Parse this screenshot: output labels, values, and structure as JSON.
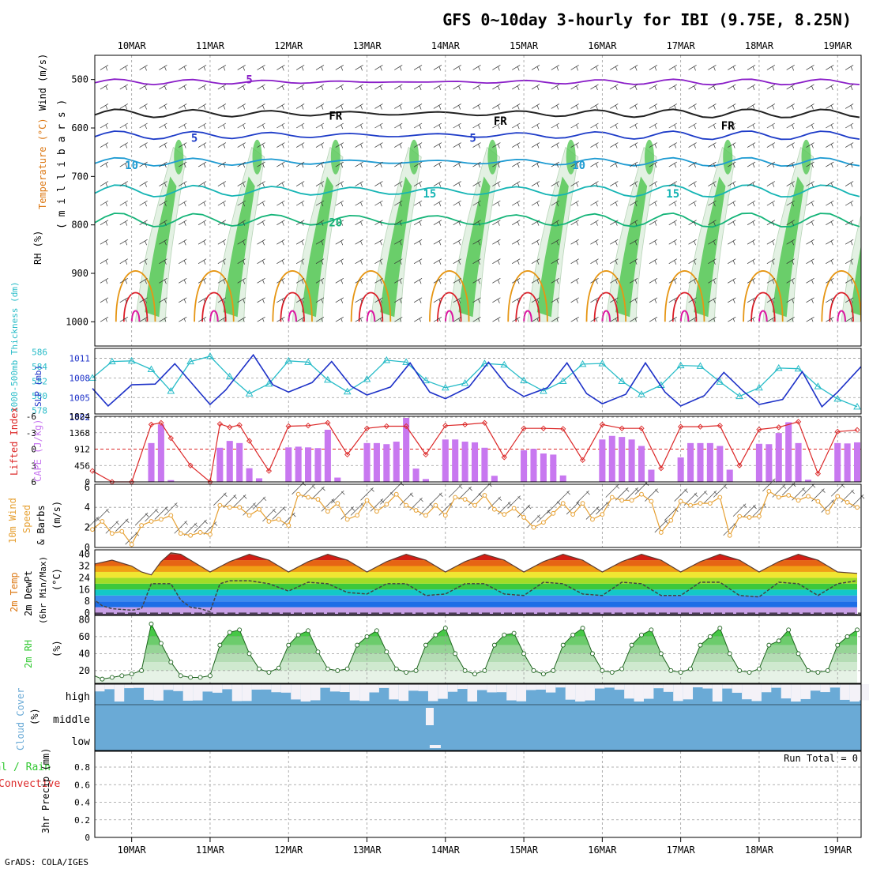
{
  "title": "GFS 0~10day 3-hourly for IBI (9.75E, 8.25N)",
  "footer": "GrADS: COLA/IGES",
  "colors": {
    "rh_green": "#55c855",
    "rh_light": "#e3f1e3",
    "wind_purple": "#8a1ec8",
    "fr_black": "#000000",
    "blue_5": "#1e3cc8",
    "cyan_10": "#1e9bd2",
    "teal_15": "#14b4b4",
    "green_20": "#14b478",
    "orange_25": "#e69614",
    "red_30": "#dc1e28",
    "magenta_35": "#dc14a0",
    "slp_cyan": "#28bcc8",
    "thickness_blue": "#1e32c8",
    "li_red": "#dc2828",
    "cape_purple": "#c878f0",
    "wind_orange": "#e6a032",
    "rh2m_green": "#32c832",
    "cloud_blue": "#6aaad6"
  },
  "x_axis": {
    "dates": [
      "10MAR",
      "11MAR",
      "12MAR",
      "13MAR",
      "14MAR",
      "15MAR",
      "16MAR",
      "17MAR",
      "18MAR",
      "19MAR"
    ],
    "range_days": [
      -0.47,
      9.3
    ]
  },
  "panels": {
    "upper": {
      "ylabel": "(millibars)",
      "ylabel_spaced": "( m i l l i b a r s )",
      "label_wind": "Wind (m/s)",
      "label_temp": "Temperature (°C)",
      "label_rh": "RH (%)",
      "yticks": [
        "500",
        "600",
        "700",
        "800",
        "900",
        "1000"
      ],
      "contour_labels": [
        "5",
        "FR",
        "5",
        "5",
        "FR",
        "FR",
        "10",
        "10",
        "15",
        "15",
        "20"
      ]
    },
    "slp": {
      "label_left": "1000-500mb Thickness (dm)",
      "label_right": "SLP (mb)",
      "left_ticks": [
        "586",
        "584",
        "582",
        "580",
        "578"
      ],
      "right_ticks": [
        "1011",
        "1008",
        "1005",
        "1002"
      ]
    },
    "cape": {
      "label_left": "Lifted Index",
      "label_right": "CAPE (J/kg)",
      "left_ticks": [
        "-6",
        "-3",
        "0",
        "3",
        "6"
      ],
      "right_ticks": [
        "1824",
        "1368",
        "912",
        "456",
        "0"
      ]
    },
    "wind10": {
      "label1": "10m Wind",
      "label2": "Speed",
      "label3": "& Barbs",
      "label4": "(m/s)",
      "ticks": [
        "0",
        "2",
        "4",
        "6"
      ]
    },
    "temp2m": {
      "label1": "2m Temp",
      "label2": "2m DewPt",
      "label3": "(6hr Min/Max)",
      "label4": "(°C)",
      "ticks": [
        "0",
        "8",
        "16",
        "24",
        "32",
        "40"
      ]
    },
    "rh2m": {
      "label1": "2m RH",
      "label2": "(%)",
      "ticks": [
        "20",
        "40",
        "60",
        "80"
      ]
    },
    "cloud": {
      "label1": "Cloud Cover",
      "label2": "(%)",
      "levels": [
        "high",
        "middle",
        "low"
      ]
    },
    "precip": {
      "label1": "Total / Rain",
      "label2": "Convective",
      "label3": "3hr Precip (mm)",
      "ticks": [
        "0",
        "0.2",
        "0.4",
        "0.6",
        "0.8"
      ],
      "run_total": "Run Total = 0"
    }
  },
  "chart_data": [
    {
      "type": "line",
      "title": "1000-500mb Thickness (dm) / SLP (mb)",
      "x_unit": "days from 10MAR 00Z",
      "series": [
        {
          "name": "SLP (mb)",
          "x": [
            -0.5,
            -0.25,
            0,
            0.25,
            0.5,
            0.75,
            1,
            1.25,
            1.5,
            1.75,
            2,
            2.25,
            2.5,
            2.75,
            3,
            3.25,
            3.5,
            3.75,
            4,
            4.25,
            4.5,
            4.75,
            5,
            5.25,
            5.5,
            5.75,
            6,
            6.25,
            6.5,
            6.75,
            7,
            7.25,
            7.5,
            7.75,
            8,
            8.25,
            8.5,
            8.75,
            9,
            9.25
          ],
          "y": [
            1008,
            1010.5,
            1010.6,
            1009.3,
            1006,
            1010.5,
            1011.3,
            1008.2,
            1005.6,
            1007.1,
            1010.6,
            1010.4,
            1007.7,
            1005.9,
            1007.8,
            1010.7,
            1010.4,
            1007.6,
            1006.5,
            1007.2,
            1010.2,
            1010,
            1007.6,
            1006,
            1007.5,
            1010.1,
            1010.2,
            1007.5,
            1005.5,
            1006.9,
            1009.9,
            1009.8,
            1007.4,
            1005.2,
            1006.5,
            1009.5,
            1009.4,
            1006.7,
            1004.8,
            1003.6
          ]
        },
        {
          "name": "1000-500mb Thickness (dm)",
          "x": [
            -0.5,
            -0.3,
            0,
            0.3,
            0.55,
            0.8,
            1,
            1.2,
            1.55,
            1.8,
            2,
            2.3,
            2.55,
            2.8,
            3,
            3.3,
            3.55,
            3.8,
            4,
            4.3,
            4.55,
            4.8,
            5,
            5.3,
            5.55,
            5.8,
            6,
            6.3,
            6.55,
            6.8,
            7,
            7.3,
            7.55,
            7.8,
            8,
            8.3,
            8.55,
            8.8,
            9,
            9.3
          ],
          "y": [
            581,
            578.6,
            581.5,
            581.6,
            584.4,
            581.3,
            578.8,
            580.8,
            585.6,
            581.5,
            580.5,
            581.8,
            584.7,
            581.3,
            580.1,
            581.2,
            584.5,
            580.5,
            579.6,
            581.2,
            584.6,
            581.2,
            579.9,
            581.1,
            584.5,
            580.3,
            578.9,
            580.2,
            584.5,
            580.5,
            578.6,
            580,
            583.2,
            580.6,
            578.8,
            579.5,
            583.3,
            578.5,
            580.5,
            584
          ]
        }
      ]
    },
    {
      "type": "bar",
      "title": "Lifted Index / CAPE (J/kg)",
      "x_unit": "days from 10MAR 00Z",
      "series": [
        {
          "name": "CAPE (J/kg)",
          "x": [
            0.25,
            0.375,
            0.5,
            1.125,
            1.25,
            1.375,
            1.5,
            1.625,
            2,
            2.125,
            2.25,
            2.375,
            2.5,
            2.625,
            3,
            3.125,
            3.25,
            3.375,
            3.5,
            3.625,
            3.75,
            4,
            4.125,
            4.25,
            4.375,
            4.5,
            4.625,
            5,
            5.125,
            5.25,
            5.375,
            5.5,
            6,
            6.125,
            6.25,
            6.375,
            6.5,
            6.625,
            7,
            7.125,
            7.25,
            7.375,
            7.5,
            7.625,
            8,
            8.125,
            8.25,
            8.375,
            8.5,
            8.625,
            9,
            9.125,
            9.25
          ],
          "y": [
            1080,
            1600,
            50,
            950,
            1140,
            1080,
            380,
            100,
            960,
            980,
            960,
            940,
            1450,
            120,
            1080,
            1080,
            1050,
            1120,
            1780,
            370,
            80,
            1180,
            1180,
            1120,
            1100,
            950,
            170,
            880,
            920,
            790,
            760,
            180,
            1180,
            1280,
            1250,
            1180,
            1000,
            340,
            680,
            1080,
            1080,
            1080,
            1000,
            340,
            1060,
            1050,
            1360,
            1660,
            1080,
            60,
            1080,
            1070,
            1100
          ]
        },
        {
          "name": "Lifted Index",
          "x": [
            -0.5,
            -0.25,
            0,
            0.25,
            0.375,
            0.5,
            0.75,
            1,
            1.125,
            1.25,
            1.375,
            1.5,
            1.75,
            2,
            2.25,
            2.5,
            2.75,
            3,
            3.25,
            3.5,
            3.75,
            4,
            4.25,
            4.5,
            4.75,
            5,
            5.25,
            5.5,
            5.75,
            6,
            6.25,
            6.5,
            6.75,
            7,
            7.25,
            7.5,
            7.75,
            8,
            8.25,
            8.5,
            8.75,
            9,
            9.25
          ],
          "y": [
            4,
            6,
            6,
            -4.5,
            -4.8,
            -2,
            3,
            6,
            -4.6,
            -4,
            -4.4,
            -1.5,
            4,
            -4.2,
            -4.3,
            -4.8,
            1,
            -3.8,
            -4.2,
            -4.2,
            1,
            -4.3,
            -4.5,
            -4.8,
            1.5,
            -3.8,
            -3.8,
            -3.7,
            2,
            -4.5,
            -3.8,
            -3.8,
            3.5,
            -4.1,
            -4.1,
            -4.3,
            3,
            -3.6,
            -4,
            -5,
            4.5,
            -3.2,
            -3.5
          ]
        }
      ]
    },
    {
      "type": "line",
      "title": "10m Wind Speed (m/s)",
      "x_unit": "days from 10MAR 00Z",
      "series": [
        {
          "name": "10m Wind Speed",
          "x": [
            -0.5,
            -0.375,
            -0.25,
            -0.125,
            0,
            0.125,
            0.25,
            0.375,
            0.5,
            0.625,
            0.75,
            0.875,
            1,
            1.125,
            1.25,
            1.375,
            1.5,
            1.625,
            1.75,
            1.875,
            2,
            2.125,
            2.25,
            2.375,
            2.5,
            2.625,
            2.75,
            2.875,
            3,
            3.125,
            3.25,
            3.375,
            3.5,
            3.625,
            3.75,
            3.875,
            4,
            4.125,
            4.25,
            4.375,
            4.5,
            4.625,
            4.75,
            4.875,
            5,
            5.125,
            5.25,
            5.375,
            5.5,
            5.625,
            5.75,
            5.875,
            6,
            6.125,
            6.25,
            6.375,
            6.5,
            6.625,
            6.75,
            6.875,
            7,
            7.125,
            7.25,
            7.375,
            7.5,
            7.625,
            7.75,
            7.875,
            8,
            8.125,
            8.25,
            8.375,
            8.5,
            8.625,
            8.75,
            8.875,
            9,
            9.125,
            9.25
          ],
          "y": [
            1.8,
            2.6,
            1.4,
            1.6,
            0.3,
            2.2,
            2.6,
            2.8,
            3.2,
            1.4,
            1.2,
            1.5,
            1.3,
            4.2,
            4,
            4,
            3.2,
            3.8,
            2.6,
            2.8,
            2.2,
            5.3,
            5,
            4.8,
            3.6,
            4.4,
            2.8,
            3.2,
            4.7,
            3.6,
            4.3,
            5.3,
            4.2,
            3.7,
            3.2,
            4.2,
            3.2,
            5,
            4.8,
            4.2,
            5.2,
            3.8,
            3.3,
            3.9,
            3,
            2,
            2.5,
            3.4,
            4.4,
            3.3,
            4.4,
            2.8,
            3.3,
            5,
            4.7,
            4.7,
            5.3,
            4.6,
            1.5,
            2.7,
            4.6,
            4.2,
            4.4,
            4.4,
            5,
            1.2,
            3.1,
            3,
            3.1,
            5.6,
            5,
            5.2,
            4.7,
            5.1,
            4.6,
            3.5,
            5.1,
            4.5,
            4
          ]
        }
      ]
    },
    {
      "type": "area",
      "title": "2m Temp / 2m DewPt (6hr Min/Max) (°C)",
      "x_unit": "days from 10MAR 00Z",
      "series": [
        {
          "name": "2m Temp",
          "x": [
            -0.5,
            -0.25,
            0,
            0.125,
            0.25,
            0.375,
            0.5,
            0.625,
            0.75,
            1,
            1.25,
            1.5,
            1.75,
            2,
            2.25,
            2.5,
            2.75,
            3,
            3.25,
            3.5,
            3.75,
            4,
            4.25,
            4.5,
            4.75,
            5,
            5.25,
            5.5,
            5.75,
            6,
            6.25,
            6.5,
            6.75,
            7,
            7.25,
            7.5,
            7.75,
            8,
            8.25,
            8.5,
            8.75,
            9,
            9.25
          ],
          "y": [
            33,
            36,
            32,
            28,
            26,
            35,
            41,
            40,
            36,
            28,
            35,
            40,
            36,
            28,
            35,
            40,
            36,
            28,
            35,
            40,
            36,
            28,
            35,
            40,
            36,
            28,
            35,
            40,
            36,
            28,
            35,
            40,
            36,
            28,
            35,
            40,
            36,
            28,
            35,
            40,
            36,
            28,
            27
          ]
        },
        {
          "name": "2m DewPt",
          "x": [
            -0.5,
            -0.375,
            -0.25,
            0,
            0.125,
            0.25,
            0.5,
            0.625,
            0.75,
            0.875,
            1,
            1.125,
            1.25,
            1.5,
            1.75,
            2,
            2.25,
            2.5,
            2.75,
            3,
            3.25,
            3.5,
            3.75,
            4,
            4.25,
            4.5,
            4.75,
            5,
            5.25,
            5.5,
            5.75,
            6,
            6.25,
            6.5,
            6.75,
            7,
            7.25,
            7.5,
            7.75,
            8,
            8.25,
            8.5,
            8.75,
            9,
            9.25
          ],
          "y": [
            10,
            5,
            3,
            2,
            3,
            20,
            20,
            9,
            4,
            3,
            1,
            20,
            22,
            22,
            20,
            15,
            21,
            20,
            14,
            13,
            20,
            20,
            12,
            13,
            20,
            20,
            13,
            12,
            21,
            20,
            13,
            12,
            21,
            20,
            12,
            12,
            21,
            21,
            12,
            11,
            21,
            20,
            12,
            20,
            22
          ]
        }
      ]
    },
    {
      "type": "area",
      "title": "2m RH (%)",
      "x_unit": "days from 10MAR 00Z",
      "series": [
        {
          "name": "2m RH",
          "x": [
            -0.5,
            -0.375,
            -0.25,
            -0.125,
            0,
            0.125,
            0.25,
            0.375,
            0.5,
            0.625,
            0.75,
            0.875,
            1,
            1.125,
            1.25,
            1.375,
            1.5,
            1.625,
            1.75,
            1.875,
            2,
            2.125,
            2.25,
            2.375,
            2.5,
            2.625,
            2.75,
            2.875,
            3,
            3.125,
            3.25,
            3.375,
            3.5,
            3.625,
            3.75,
            3.875,
            4,
            4.125,
            4.25,
            4.375,
            4.5,
            4.625,
            4.75,
            4.875,
            5,
            5.125,
            5.25,
            5.375,
            5.5,
            5.625,
            5.75,
            5.875,
            6,
            6.125,
            6.25,
            6.375,
            6.5,
            6.625,
            6.75,
            6.875,
            7,
            7.125,
            7.25,
            7.375,
            7.5,
            7.625,
            7.75,
            7.875,
            8,
            8.125,
            8.25,
            8.375,
            8.5,
            8.625,
            8.75,
            8.875,
            9,
            9.125,
            9.25
          ],
          "y": [
            15,
            10,
            12,
            14,
            16,
            20,
            75,
            52,
            30,
            14,
            12,
            12,
            14,
            50,
            65,
            68,
            40,
            22,
            18,
            23,
            50,
            62,
            67,
            42,
            22,
            20,
            22,
            50,
            60,
            67,
            42,
            22,
            18,
            20,
            50,
            62,
            70,
            40,
            20,
            16,
            20,
            50,
            62,
            64,
            40,
            20,
            16,
            20,
            50,
            62,
            70,
            40,
            20,
            18,
            22,
            50,
            62,
            68,
            40,
            20,
            18,
            22,
            50,
            60,
            70,
            40,
            20,
            18,
            22,
            50,
            55,
            68,
            40,
            20,
            18,
            20,
            50,
            60,
            68
          ]
        }
      ]
    },
    {
      "type": "bar",
      "title": "3hr Precip (mm)",
      "x_unit": "days from 10MAR 00Z",
      "series": [
        {
          "name": "Total",
          "x": [
            0,
            1,
            2,
            3,
            4,
            5,
            6,
            7,
            8,
            9
          ],
          "y": [
            0,
            0,
            0,
            0,
            0,
            0,
            0,
            0,
            0,
            0
          ]
        }
      ]
    }
  ]
}
